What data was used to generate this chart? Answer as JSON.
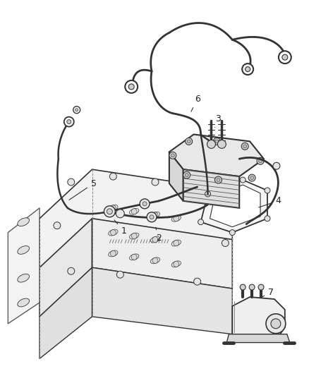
{
  "bg_color": "#ffffff",
  "line_color": "#333333",
  "label_color": "#222222",
  "figsize": [
    4.38,
    5.33
  ],
  "dpi": 100,
  "label_size": 9
}
